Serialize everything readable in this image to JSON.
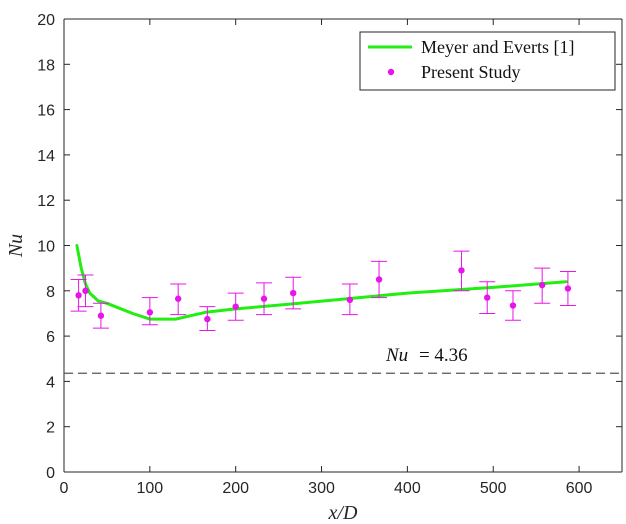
{
  "chart_data": {
    "type": "line",
    "title": "",
    "xlabel": "x/D",
    "ylabel": "Nu",
    "xlim": [
      0,
      650
    ],
    "ylim": [
      0,
      20
    ],
    "xticks": [
      0,
      100,
      200,
      300,
      400,
      500,
      600
    ],
    "yticks": [
      0,
      2,
      4,
      6,
      8,
      10,
      12,
      14,
      16,
      18,
      20
    ],
    "grid": false,
    "legend_position": "top-right",
    "series": [
      {
        "name": "Meyer and Everts [1]",
        "kind": "line",
        "color": "#22ee11",
        "x": [
          15,
          20,
          25,
          30,
          40,
          50,
          60,
          80,
          100,
          130,
          165,
          200,
          260,
          330,
          400,
          500,
          585
        ],
        "y": [
          10.0,
          9.0,
          8.3,
          7.9,
          7.55,
          7.45,
          7.3,
          7.0,
          6.75,
          6.75,
          7.05,
          7.2,
          7.4,
          7.65,
          7.9,
          8.15,
          8.4
        ]
      },
      {
        "name": "Present Study",
        "kind": "scatter-errorbar",
        "color": "#e815e8",
        "points": [
          {
            "x": 17,
            "y": 7.8,
            "lo": 7.1,
            "hi": 8.5
          },
          {
            "x": 25,
            "y": 8.0,
            "lo": 7.3,
            "hi": 8.7
          },
          {
            "x": 43,
            "y": 6.9,
            "lo": 6.35,
            "hi": 7.45
          },
          {
            "x": 100,
            "y": 7.05,
            "lo": 6.5,
            "hi": 7.7
          },
          {
            "x": 133,
            "y": 7.65,
            "lo": 6.95,
            "hi": 8.3
          },
          {
            "x": 167,
            "y": 6.75,
            "lo": 6.25,
            "hi": 7.3
          },
          {
            "x": 200,
            "y": 7.3,
            "lo": 6.7,
            "hi": 7.9
          },
          {
            "x": 233,
            "y": 7.65,
            "lo": 6.95,
            "hi": 8.35
          },
          {
            "x": 267,
            "y": 7.9,
            "lo": 7.2,
            "hi": 8.6
          },
          {
            "x": 333,
            "y": 7.6,
            "lo": 6.95,
            "hi": 8.3
          },
          {
            "x": 367,
            "y": 8.5,
            "lo": 7.7,
            "hi": 9.3
          },
          {
            "x": 463,
            "y": 8.9,
            "lo": 8.0,
            "hi": 9.75
          },
          {
            "x": 493,
            "y": 7.7,
            "lo": 7.0,
            "hi": 8.4
          },
          {
            "x": 523,
            "y": 7.35,
            "lo": 6.7,
            "hi": 8.0
          },
          {
            "x": 557,
            "y": 8.25,
            "lo": 7.45,
            "hi": 9.0
          },
          {
            "x": 587,
            "y": 8.1,
            "lo": 7.35,
            "hi": 8.85
          }
        ]
      }
    ],
    "reference_line": {
      "y": 4.36,
      "style": "dashed",
      "color": "#555555",
      "label_var": "Nu",
      "label_value": "= 4.36"
    },
    "colors": {
      "axis": "#262626",
      "line": "#22ee11",
      "markers": "#e815e8",
      "reference": "#555555"
    }
  }
}
